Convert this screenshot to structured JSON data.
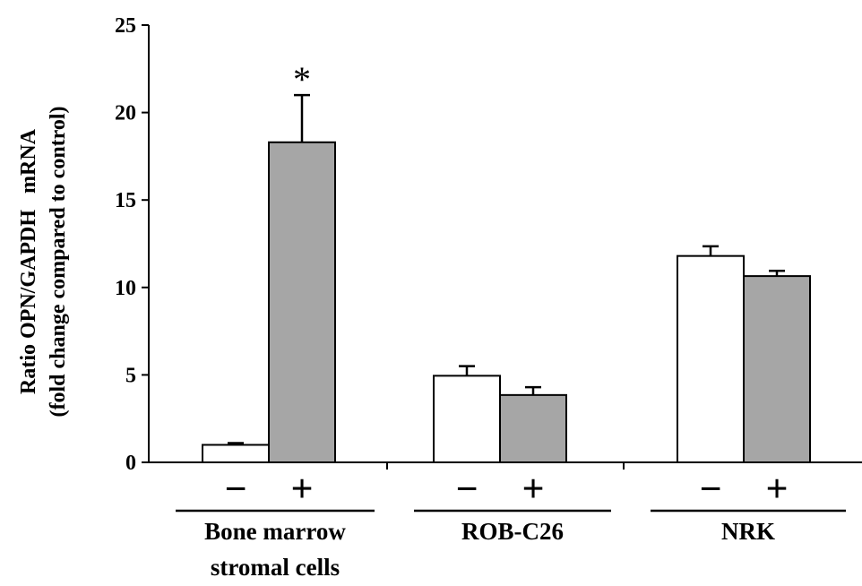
{
  "chart_data": {
    "type": "bar",
    "ylabel": [
      "Ratio OPN/GAPDH   mRNA",
      "(fold change compared to control)"
    ],
    "ylim": [
      0,
      25
    ],
    "yticks": [
      "0",
      "5",
      "10",
      "15",
      "20",
      "25"
    ],
    "legend": "none",
    "grid": false,
    "groups": [
      {
        "label": [
          "Bone marrow",
          "stromal cells"
        ],
        "bars": [
          {
            "condition": "−",
            "value": 1.0,
            "error": 0.1,
            "color": "#ffffff",
            "annotation": ""
          },
          {
            "condition": "+",
            "value": 18.3,
            "error": 2.7,
            "color": "#a6a6a6",
            "annotation": "*"
          }
        ]
      },
      {
        "label": [
          "ROB-C26"
        ],
        "bars": [
          {
            "condition": "−",
            "value": 4.95,
            "error": 0.55,
            "color": "#ffffff",
            "annotation": ""
          },
          {
            "condition": "+",
            "value": 3.85,
            "error": 0.45,
            "color": "#a6a6a6",
            "annotation": ""
          }
        ]
      },
      {
        "label": [
          "NRK"
        ],
        "bars": [
          {
            "condition": "−",
            "value": 11.8,
            "error": 0.55,
            "color": "#ffffff",
            "annotation": ""
          },
          {
            "condition": "+",
            "value": 10.65,
            "error": 0.3,
            "color": "#a6a6a6",
            "annotation": ""
          }
        ]
      }
    ]
  }
}
